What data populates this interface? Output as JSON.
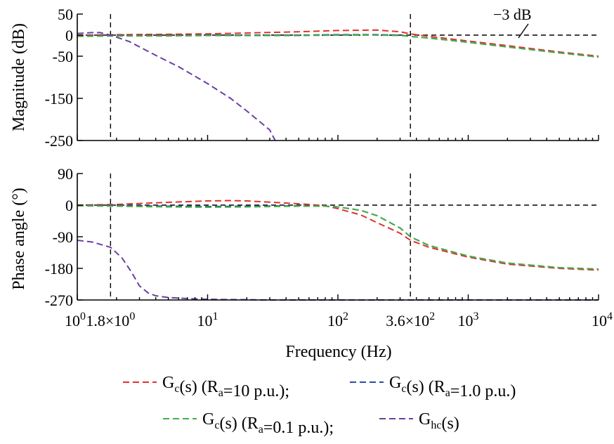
{
  "chart_data": {
    "type": "line",
    "x_scale": "log",
    "xlabel": "Frequency (Hz)",
    "x_ticks": [
      {
        "value": 1,
        "base": "10",
        "exp": "0"
      },
      {
        "value": 1.8,
        "mant": "1.8×10",
        "exp": "0"
      },
      {
        "value": 10,
        "base": "10",
        "exp": "1"
      },
      {
        "value": 100,
        "base": "10",
        "exp": "2"
      },
      {
        "value": 360,
        "mant": "3.6×10",
        "exp": "2"
      },
      {
        "value": 1000,
        "base": "10",
        "exp": "3"
      },
      {
        "value": 10000,
        "base": "10",
        "exp": "4"
      }
    ],
    "xlim": [
      1,
      10000
    ],
    "vlines": [
      1.8,
      360
    ],
    "colors": {
      "ra10": "#e0312f",
      "ra1": "#2c4da0",
      "ra01": "#43b044",
      "hc": "#6a3fa0"
    },
    "magnitude": {
      "ylabel": "Magnitude (dB)",
      "ylim": [
        -250,
        50
      ],
      "y_ticks": [
        50,
        0,
        -50,
        -150,
        -250
      ],
      "y_tick_labels": [
        "50",
        "0",
        "-50",
        "-150",
        "-250"
      ],
      "hline": 0,
      "annotation": "−3 dB",
      "series": [
        {
          "key": "ra10",
          "x": [
            1,
            2,
            5,
            10,
            20,
            50,
            100,
            200,
            300,
            360,
            500,
            1000,
            2000,
            5000,
            10000
          ],
          "y": [
            0,
            1,
            2,
            3,
            5,
            8,
            11,
            12,
            8,
            3,
            -3,
            -14,
            -25,
            -40,
            -50
          ]
        },
        {
          "key": "ra1",
          "x": [
            1,
            2,
            5,
            10,
            20,
            50,
            100,
            200,
            300,
            360,
            500,
            1000,
            2000,
            5000,
            10000
          ],
          "y": [
            -2,
            -1,
            -1,
            0,
            0,
            0,
            1,
            1,
            0,
            -3,
            -7,
            -17,
            -28,
            -42,
            -52
          ]
        },
        {
          "key": "ra01",
          "x": [
            1,
            2,
            5,
            10,
            20,
            50,
            100,
            200,
            300,
            360,
            500,
            1000,
            2000,
            5000,
            10000
          ],
          "y": [
            -3,
            -2,
            -2,
            -1,
            -1,
            -1,
            0,
            0,
            -1,
            -3,
            -7,
            -17,
            -28,
            -42,
            -52
          ]
        },
        {
          "key": "hc",
          "x": [
            1,
            1.3,
            1.5,
            1.8,
            2.5,
            4,
            6,
            10,
            15,
            20,
            30,
            33
          ],
          "y": [
            4,
            6,
            6,
            0,
            -15,
            -48,
            -75,
            -115,
            -150,
            -180,
            -225,
            -250
          ]
        }
      ]
    },
    "phase": {
      "ylabel": "Phase angle (°)",
      "ylim": [
        -270,
        90
      ],
      "y_ticks": [
        90,
        0,
        -90,
        -180,
        -270
      ],
      "y_tick_labels": [
        "90",
        "0",
        "-90",
        "-180",
        "-270"
      ],
      "hline": 0,
      "series": [
        {
          "key": "ra10",
          "x": [
            1,
            2,
            5,
            10,
            15,
            20,
            40,
            60,
            80,
            100,
            150,
            200,
            300,
            360,
            500,
            1000,
            2000,
            5000,
            10000
          ],
          "y": [
            0,
            2,
            8,
            12,
            13,
            12,
            6,
            2,
            -2,
            -10,
            -28,
            -50,
            -80,
            -100,
            -120,
            -148,
            -168,
            -180,
            -185
          ]
        },
        {
          "key": "ra1",
          "x": [
            1,
            2,
            5,
            10,
            20,
            50,
            80,
            100,
            150,
            200,
            300,
            360,
            500,
            1000,
            2000,
            5000,
            10000
          ],
          "y": [
            -1,
            -1,
            -3,
            -4,
            -3,
            -2,
            -3,
            -5,
            -15,
            -30,
            -65,
            -90,
            -115,
            -145,
            -165,
            -178,
            -182
          ]
        },
        {
          "key": "ra01",
          "x": [
            1,
            2,
            5,
            10,
            20,
            50,
            80,
            100,
            150,
            200,
            300,
            360,
            500,
            1000,
            2000,
            5000,
            10000
          ],
          "y": [
            -2,
            -3,
            -5,
            -6,
            -5,
            -3,
            -3,
            -5,
            -15,
            -30,
            -65,
            -90,
            -115,
            -145,
            -165,
            -178,
            -182
          ]
        },
        {
          "key": "hc",
          "x": [
            1,
            1.3,
            1.8,
            2.2,
            2.6,
            3,
            3.5,
            4,
            5,
            7,
            10,
            30,
            100,
            1000,
            10000
          ],
          "y": [
            -100,
            -105,
            -120,
            -150,
            -190,
            -230,
            -250,
            -258,
            -263,
            -266,
            -268,
            -270,
            -270,
            -270,
            -270
          ]
        }
      ]
    },
    "legend": [
      {
        "key": "ra10",
        "label": "G_c(s) (R_a=10 p.u.);"
      },
      {
        "key": "ra1",
        "label": "G_c(s) (R_a=1.0 p.u.)"
      },
      {
        "key": "ra01",
        "label": "G_c(s) (R_a=0.1 p.u.);"
      },
      {
        "key": "hc",
        "label": "G_hc(s)"
      }
    ]
  }
}
